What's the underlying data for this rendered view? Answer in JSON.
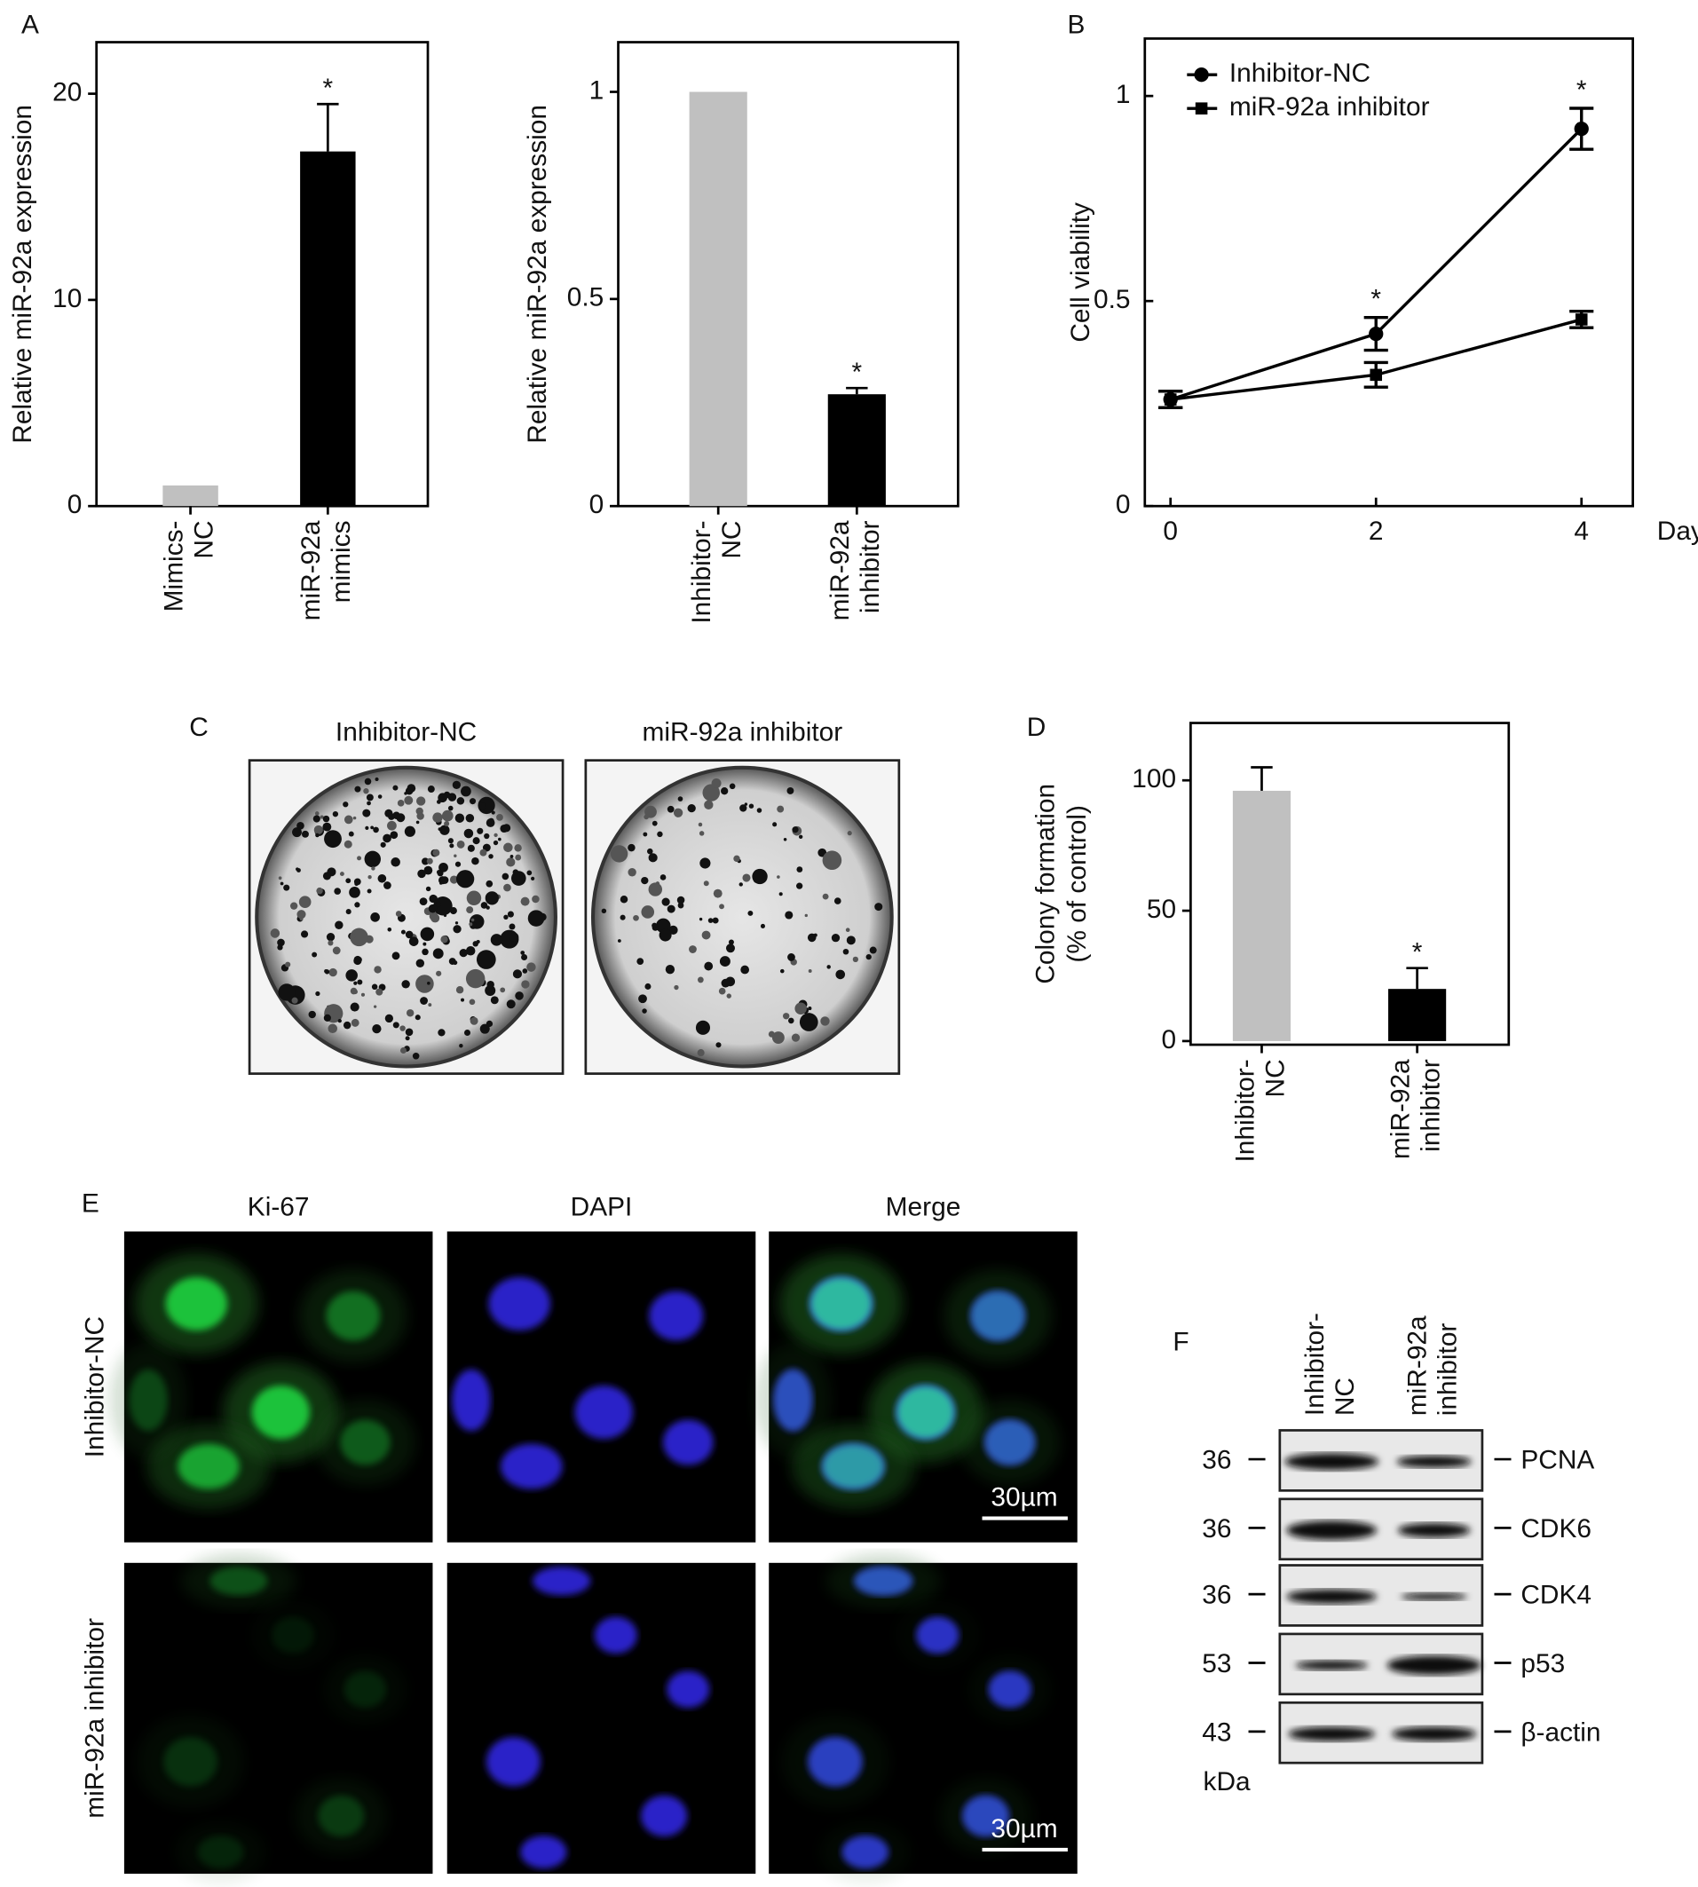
{
  "panel_labels": [
    "A",
    "B",
    "C",
    "D",
    "E",
    "F"
  ],
  "chart_data": [
    {
      "type": "bar",
      "ylabel": "Relative miR-92a expression",
      "categories": [
        [
          "Mimics-",
          "NC"
        ],
        [
          "miR-92a",
          "mimics"
        ]
      ],
      "values": [
        1.0,
        17.2
      ],
      "errors": [
        null,
        2.3
      ],
      "colors": [
        "#c0c0c0",
        "#000000"
      ],
      "annotations": [
        null,
        "*"
      ],
      "ylim": [
        0,
        22.5
      ],
      "yticks": [
        0,
        10,
        20
      ]
    },
    {
      "type": "bar",
      "ylabel": "Relative miR-92a expression",
      "categories": [
        [
          "Inhibitor-",
          "NC"
        ],
        [
          "miR-92a",
          "inhibitor"
        ]
      ],
      "values": [
        1.0,
        0.27
      ],
      "errors": [
        null,
        0.015
      ],
      "colors": [
        "#c0c0c0",
        "#000000"
      ],
      "annotations": [
        null,
        "*"
      ],
      "ylim": [
        0,
        1.12
      ],
      "yticks": [
        0,
        0.5,
        1
      ]
    },
    {
      "type": "line",
      "ylabel": "Cell viability",
      "xlabel": "Days",
      "x": [
        0,
        2,
        4
      ],
      "xlim": [
        -0.25,
        4.5
      ],
      "ylim": [
        0,
        1.14
      ],
      "xticks": [
        0,
        2,
        4
      ],
      "yticks": [
        0,
        0.5,
        1
      ],
      "legend": "upper left",
      "series": [
        {
          "name": "Inhibitor-NC",
          "color": "#000000",
          "marker": "circle",
          "values": [
            0.26,
            0.42,
            0.92
          ],
          "errors": [
            0.02,
            0.04,
            0.05
          ],
          "annotations": [
            null,
            "*",
            "*"
          ]
        },
        {
          "name": "miR-92a inhibitor",
          "color": "#000000",
          "marker": "square",
          "values": [
            0.26,
            0.32,
            0.455
          ],
          "errors": [
            0.02,
            0.03,
            0.02
          ],
          "annotations": [
            null,
            null,
            null
          ]
        }
      ]
    },
    {
      "type": "bar",
      "ylabel": [
        "Colony formation",
        "(% of control)"
      ],
      "categories": [
        [
          "Inhibitor-",
          "NC"
        ],
        [
          "miR-92a",
          "inhibitor"
        ]
      ],
      "values": [
        96,
        20
      ],
      "errors": [
        9,
        8
      ],
      "colors": [
        "#c0c0c0",
        "#000000"
      ],
      "annotations": [
        null,
        "*"
      ],
      "ylim": [
        -1.4,
        122
      ],
      "yticks": [
        0,
        50,
        100
      ]
    }
  ],
  "colony": {
    "labels": [
      "Inhibitor-NC",
      "miR-92a inhibitor"
    ]
  },
  "immunofluorescence": {
    "columns": [
      "Ki-67",
      "DAPI",
      "Merge"
    ],
    "rows": [
      "Inhibitor-NC",
      "miR-92a inhibitor"
    ],
    "scale_bar": "30µm"
  },
  "western_blot": {
    "lanes": [
      [
        "Inhibitor-",
        "NC"
      ],
      [
        "miR-92a",
        "inhibitor"
      ]
    ],
    "proteins": [
      "PCNA",
      "CDK6",
      "CDK4",
      "p53",
      "β-actin"
    ],
    "markers": [
      "36",
      "36",
      "36",
      "53",
      "43"
    ],
    "unit": "kDa"
  }
}
